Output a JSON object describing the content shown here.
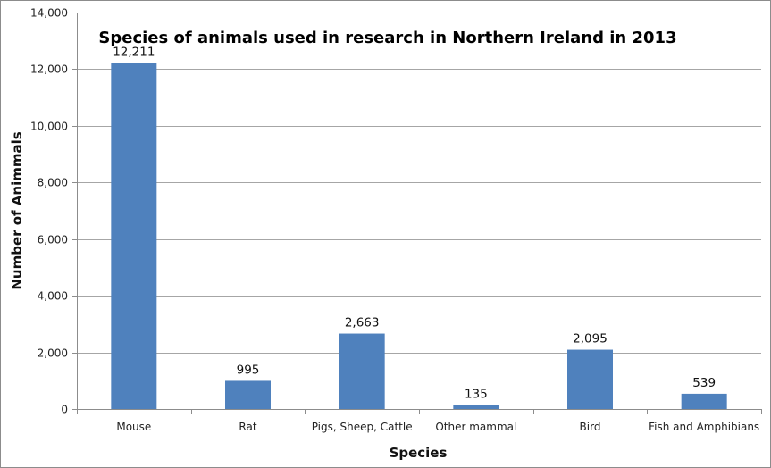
{
  "chart_data": {
    "type": "bar",
    "title": "Species of animals used in research in Northern Ireland in 2013",
    "xlabel": "Species",
    "ylabel": "Number of Animmals",
    "categories": [
      "Mouse",
      "Rat",
      "Pigs, Sheep, Cattle",
      "Other mammal",
      "Bird",
      "Fish and Amphibians"
    ],
    "values": [
      12211,
      995,
      2663,
      135,
      2095,
      539
    ],
    "data_labels": [
      "12,211",
      "995",
      "2,663",
      "135",
      "2,095",
      "539"
    ],
    "ylim": [
      0,
      14000
    ],
    "yticks": [
      0,
      2000,
      4000,
      6000,
      8000,
      10000,
      12000,
      14000
    ],
    "ytick_labels": [
      "0",
      "2,000",
      "4,000",
      "6,000",
      "8,000",
      "10,000",
      "12,000",
      "14,000"
    ],
    "grid": true,
    "legend": "none",
    "bar_color": "#4f81bd"
  }
}
